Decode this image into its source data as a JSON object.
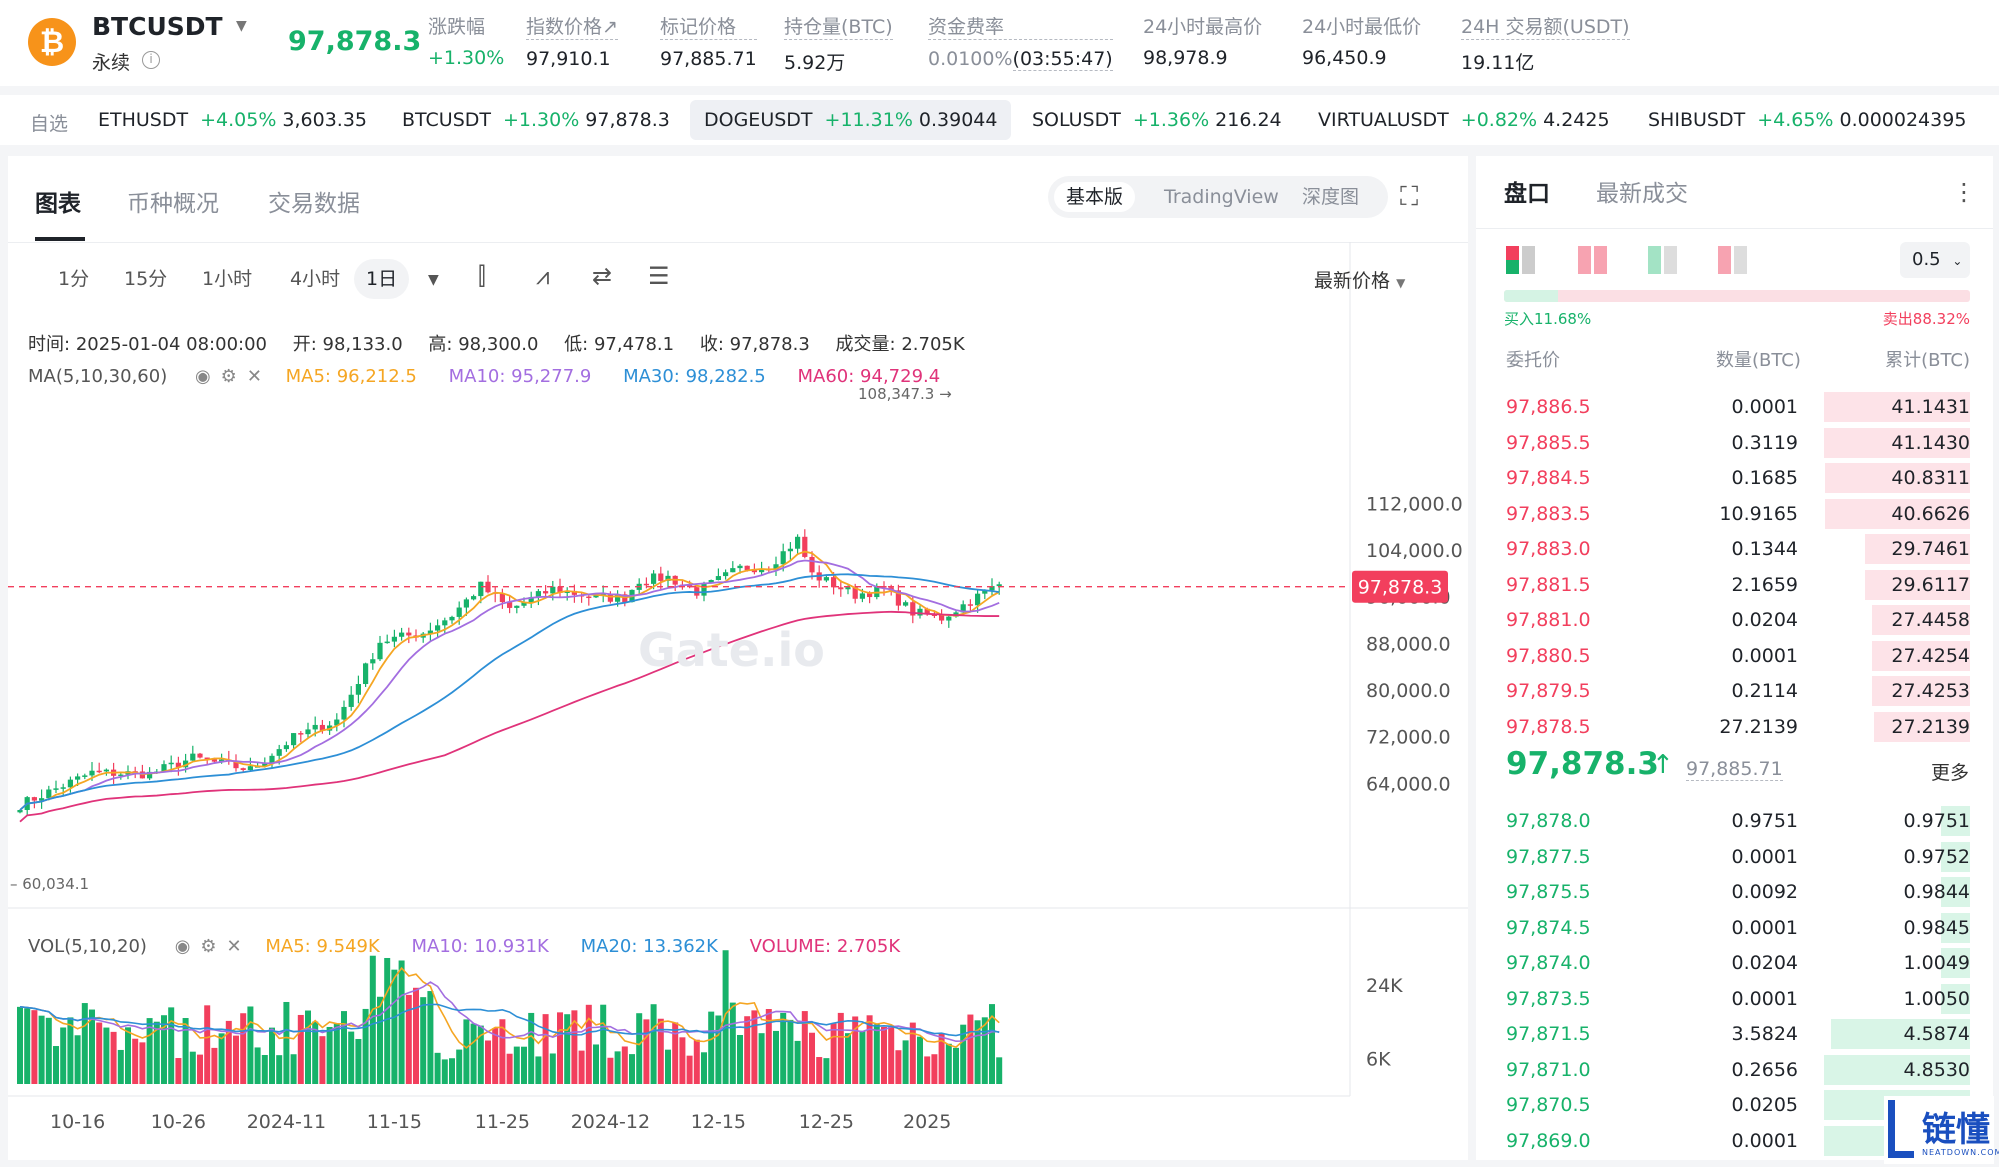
{
  "header": {
    "symbol": "BTCUSDT",
    "contract_type": "永续",
    "last_price": "97,878.3",
    "stats": [
      {
        "label": "涨跌幅",
        "value": "+1.30%",
        "color": "#17b26a"
      },
      {
        "label": "指数价格↗",
        "value": "97,910.1"
      },
      {
        "label": "标记价格",
        "value": "97,885.71"
      },
      {
        "label": "持仓量(BTC)",
        "value": "5.92万"
      },
      {
        "label": "资金费率",
        "value": "0.0100%",
        "extra": "(03:55:47)"
      },
      {
        "label": "24小时最高价",
        "value": "98,978.9"
      },
      {
        "label": "24小时最低价",
        "value": "96,450.9"
      },
      {
        "label": "24H 交易额(USDT)",
        "value": "19.11亿"
      }
    ]
  },
  "ticker_bar": {
    "watchlist_label": "自选",
    "items": [
      {
        "symbol": "ETHUSDT",
        "change": "+4.05%",
        "price": "3,603.35"
      },
      {
        "symbol": "BTCUSDT",
        "change": "+1.30%",
        "price": "97,878.3"
      },
      {
        "symbol": "DOGEUSDT",
        "change": "+11.31%",
        "price": "0.39044",
        "active": true
      },
      {
        "symbol": "SOLUSDT",
        "change": "+1.36%",
        "price": "216.24"
      },
      {
        "symbol": "VIRTUALUSDT",
        "change": "+0.82%",
        "price": "4.2425"
      },
      {
        "symbol": "SHIBUSDT",
        "change": "+4.65%",
        "price": "0.000024395"
      }
    ]
  },
  "chart_panel": {
    "tabs": [
      "图表",
      "币种概况",
      "交易数据"
    ],
    "versions": [
      "基本版",
      "TradingView",
      "深度图"
    ],
    "intervals": [
      "1分",
      "15分",
      "1小时",
      "4小时",
      "1日"
    ],
    "active_interval": "1日",
    "price_type": "最新价格",
    "ohlc": {
      "time_label": "时间:",
      "time": "2025-01-04 08:00:00",
      "open_label": "开:",
      "open": "98,133.0",
      "high_label": "高:",
      "high": "98,300.0",
      "low_label": "低:",
      "low": "97,478.1",
      "close_label": "收:",
      "close": "97,878.3",
      "vol_label": "成交量:",
      "vol": "2.705K"
    },
    "ma_legend": {
      "title": "MA(5,10,30,60)",
      "items": [
        {
          "label": "MA5: 96,212.5",
          "color": "#f5a623"
        },
        {
          "label": "MA10: 95,277.9",
          "color": "#a36ee0"
        },
        {
          "label": "MA30: 98,282.5",
          "color": "#2d8fd6"
        },
        {
          "label": "MA60: 94,729.4",
          "color": "#e0337a"
        }
      ]
    },
    "vol_legend": {
      "title": "VOL(5,10,20)",
      "items": [
        {
          "label": "MA5: 9.549K",
          "color": "#f5a623"
        },
        {
          "label": "MA10: 10.931K",
          "color": "#a36ee0"
        },
        {
          "label": "MA20: 13.362K",
          "color": "#2d8fd6"
        },
        {
          "label": "VOLUME: 2.705K",
          "color": "#e0337a"
        }
      ]
    },
    "watermark": "Gate.io"
  },
  "chart_data": {
    "type": "candlestick",
    "y_ticks": [
      "112,000.0",
      "104,000.0",
      "96,000.0",
      "88,000.0",
      "80,000.0",
      "72,000.0",
      "64,000.0"
    ],
    "ylim": [
      56000,
      116000
    ],
    "x_ticks": [
      "10-16",
      "10-26",
      "2024-11",
      "11-15",
      "11-25",
      "2024-12",
      "12-15",
      "12-25",
      "2025"
    ],
    "last_price_label": "97,878.3",
    "high_marker": "108,347.3",
    "low_marker": "60,034.1",
    "vol_ticks": [
      "24K",
      "6K"
    ],
    "vol_ylim": [
      0,
      36000
    ],
    "up_color": "#17b26a",
    "down_color": "#f23f5d"
  },
  "order_book": {
    "tabs": [
      "盘口",
      "最新成交"
    ],
    "precision": "0.5",
    "buy_ratio": "买入11.68%",
    "sell_ratio": "卖出88.32%",
    "buy_fraction": 0.1168,
    "headers": [
      "委托价",
      "数量(BTC)",
      "累计(BTC)"
    ],
    "asks": [
      {
        "price": "97,886.5",
        "qty": "0.0001",
        "cum": "41.1431",
        "depth": 1.0
      },
      {
        "price": "97,885.5",
        "qty": "0.3119",
        "cum": "41.1430",
        "depth": 1.0
      },
      {
        "price": "97,884.5",
        "qty": "0.1685",
        "cum": "40.8311",
        "depth": 0.99
      },
      {
        "price": "97,883.5",
        "qty": "10.9165",
        "cum": "40.6626",
        "depth": 0.99
      },
      {
        "price": "97,883.0",
        "qty": "0.1344",
        "cum": "29.7461",
        "depth": 0.72
      },
      {
        "price": "97,881.5",
        "qty": "2.1659",
        "cum": "29.6117",
        "depth": 0.72
      },
      {
        "price": "97,881.0",
        "qty": "0.0204",
        "cum": "27.4458",
        "depth": 0.67
      },
      {
        "price": "97,880.5",
        "qty": "0.0001",
        "cum": "27.4254",
        "depth": 0.67
      },
      {
        "price": "97,879.5",
        "qty": "0.2114",
        "cum": "27.4253",
        "depth": 0.67
      },
      {
        "price": "97,878.5",
        "qty": "27.2139",
        "cum": "27.2139",
        "depth": 0.66
      }
    ],
    "mid_price": "97,878.3",
    "mark_price": "97,885.71",
    "more_label": "更多",
    "bids": [
      {
        "price": "97,878.0",
        "qty": "0.9751",
        "cum": "0.9751",
        "depth": 0.2
      },
      {
        "price": "97,877.5",
        "qty": "0.0001",
        "cum": "0.9752",
        "depth": 0.2
      },
      {
        "price": "97,875.5",
        "qty": "0.0092",
        "cum": "0.9844",
        "depth": 0.2
      },
      {
        "price": "97,874.5",
        "qty": "0.0001",
        "cum": "0.9845",
        "depth": 0.2
      },
      {
        "price": "97,874.0",
        "qty": "0.0204",
        "cum": "1.0049",
        "depth": 0.2
      },
      {
        "price": "97,873.5",
        "qty": "0.0001",
        "cum": "1.0050",
        "depth": 0.2
      },
      {
        "price": "97,871.5",
        "qty": "3.5824",
        "cum": "4.5874",
        "depth": 0.95
      },
      {
        "price": "97,871.0",
        "qty": "0.2656",
        "cum": "4.8530",
        "depth": 1.0
      },
      {
        "price": "97,870.5",
        "qty": "0.0205",
        "cum": "",
        "depth": 1.0
      },
      {
        "price": "97,869.0",
        "qty": "0.0001",
        "cum": "",
        "depth": 1.0
      }
    ]
  },
  "site_logo": {
    "text": "链懂",
    "sub": "NEATDOWN.COM"
  }
}
